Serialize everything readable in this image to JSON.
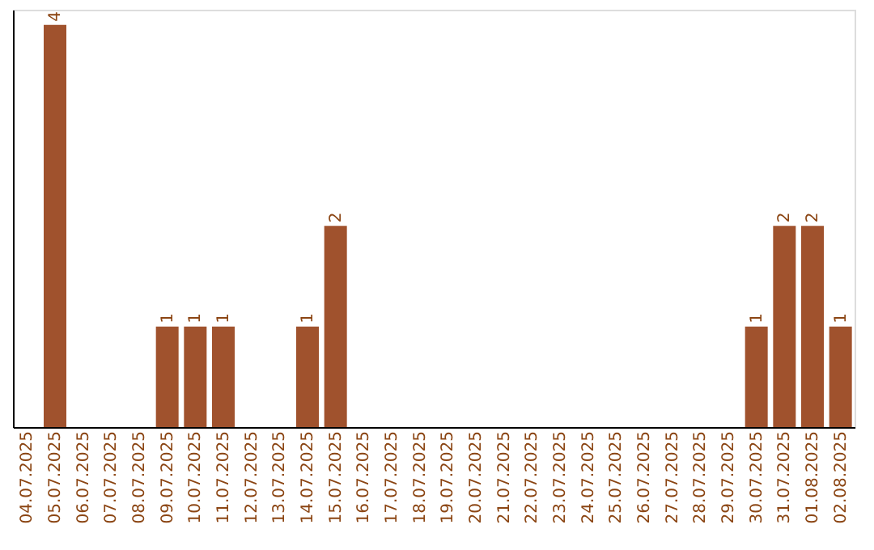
{
  "chart_data": {
    "type": "bar",
    "categories": [
      "04.07.2025",
      "05.07.2025",
      "06.07.2025",
      "07.07.2025",
      "08.07.2025",
      "09.07.2025",
      "10.07.2025",
      "11.07.2025",
      "12.07.2025",
      "13.07.2025",
      "14.07.2025",
      "15.07.2025",
      "16.07.2025",
      "17.07.2025",
      "18.07.2025",
      "19.07.2025",
      "20.07.2025",
      "21.07.2025",
      "22.07.2025",
      "23.07.2025",
      "24.07.2025",
      "25.07.2025",
      "26.07.2025",
      "27.07.2025",
      "28.07.2025",
      "29.07.2025",
      "30.07.2025",
      "31.07.2025",
      "01.08.2025",
      "02.08.2025"
    ],
    "values": [
      0,
      4,
      0,
      0,
      0,
      1,
      1,
      1,
      0,
      0,
      1,
      2,
      0,
      0,
      0,
      0,
      0,
      0,
      0,
      0,
      0,
      0,
      0,
      0,
      0,
      0,
      1,
      2,
      2,
      1
    ],
    "value_labels": [
      null,
      "4",
      null,
      null,
      null,
      "1",
      "1",
      "1",
      null,
      null,
      "1",
      "2",
      null,
      null,
      null,
      null,
      null,
      null,
      null,
      null,
      null,
      null,
      null,
      null,
      null,
      null,
      "1",
      "2",
      "2",
      "1"
    ],
    "color": "#a0522d",
    "ylim": [
      0,
      4.15
    ],
    "tick_labels": "x",
    "grid": false
  }
}
